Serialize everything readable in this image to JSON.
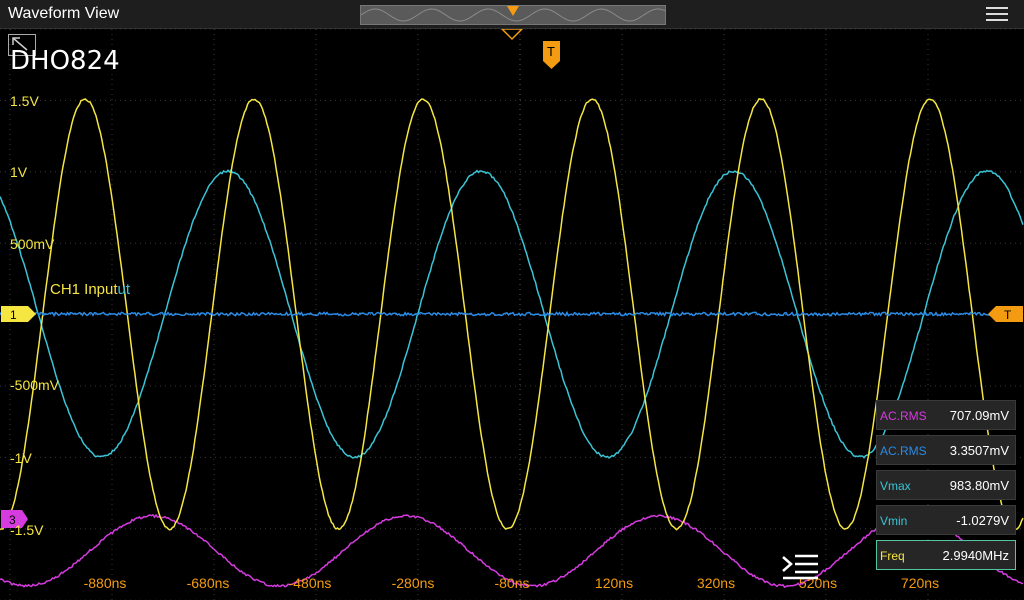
{
  "window": {
    "title": "Waveform View"
  },
  "brand": "DHO824",
  "vertical_labels": [
    "1.5V",
    "1V",
    "500mV",
    "-500mV",
    "-1V",
    "-1.5V"
  ],
  "time_labels": [
    "-880ns",
    "-680ns",
    "-480ns",
    "-280ns",
    "-80ns",
    "120ns",
    "320ns",
    "520ns",
    "720ns"
  ],
  "channel_label": {
    "text": "CH1 Input",
    "overlap": "ut"
  },
  "markers": {
    "ch1": "1",
    "ch3": "3",
    "trigger": "T"
  },
  "measurements": [
    {
      "name": "AC.RMS",
      "value": "707.09mV",
      "color": "#d63be0"
    },
    {
      "name": "AC.RMS",
      "value": "3.3507mV",
      "color": "#2a8be6"
    },
    {
      "name": "Vmax",
      "value": "983.80mV",
      "color": "#3ac4d6"
    },
    {
      "name": "Vmin",
      "value": "-1.0279V",
      "color": "#3ac4d6"
    },
    {
      "name": "Freq",
      "value": "2.9940MHz",
      "color": "#f5e642"
    }
  ],
  "colors": {
    "ch1": "#f5e642",
    "ch2": "#3ac4d6",
    "ch3": "#d63be0",
    "ch4": "#2a8be6",
    "trigger": "#f39c12"
  },
  "icons": {
    "menu": "hamburger-menu-icon",
    "brand": "resize-corner-icon",
    "scroll": "list-scroll-icon"
  }
}
